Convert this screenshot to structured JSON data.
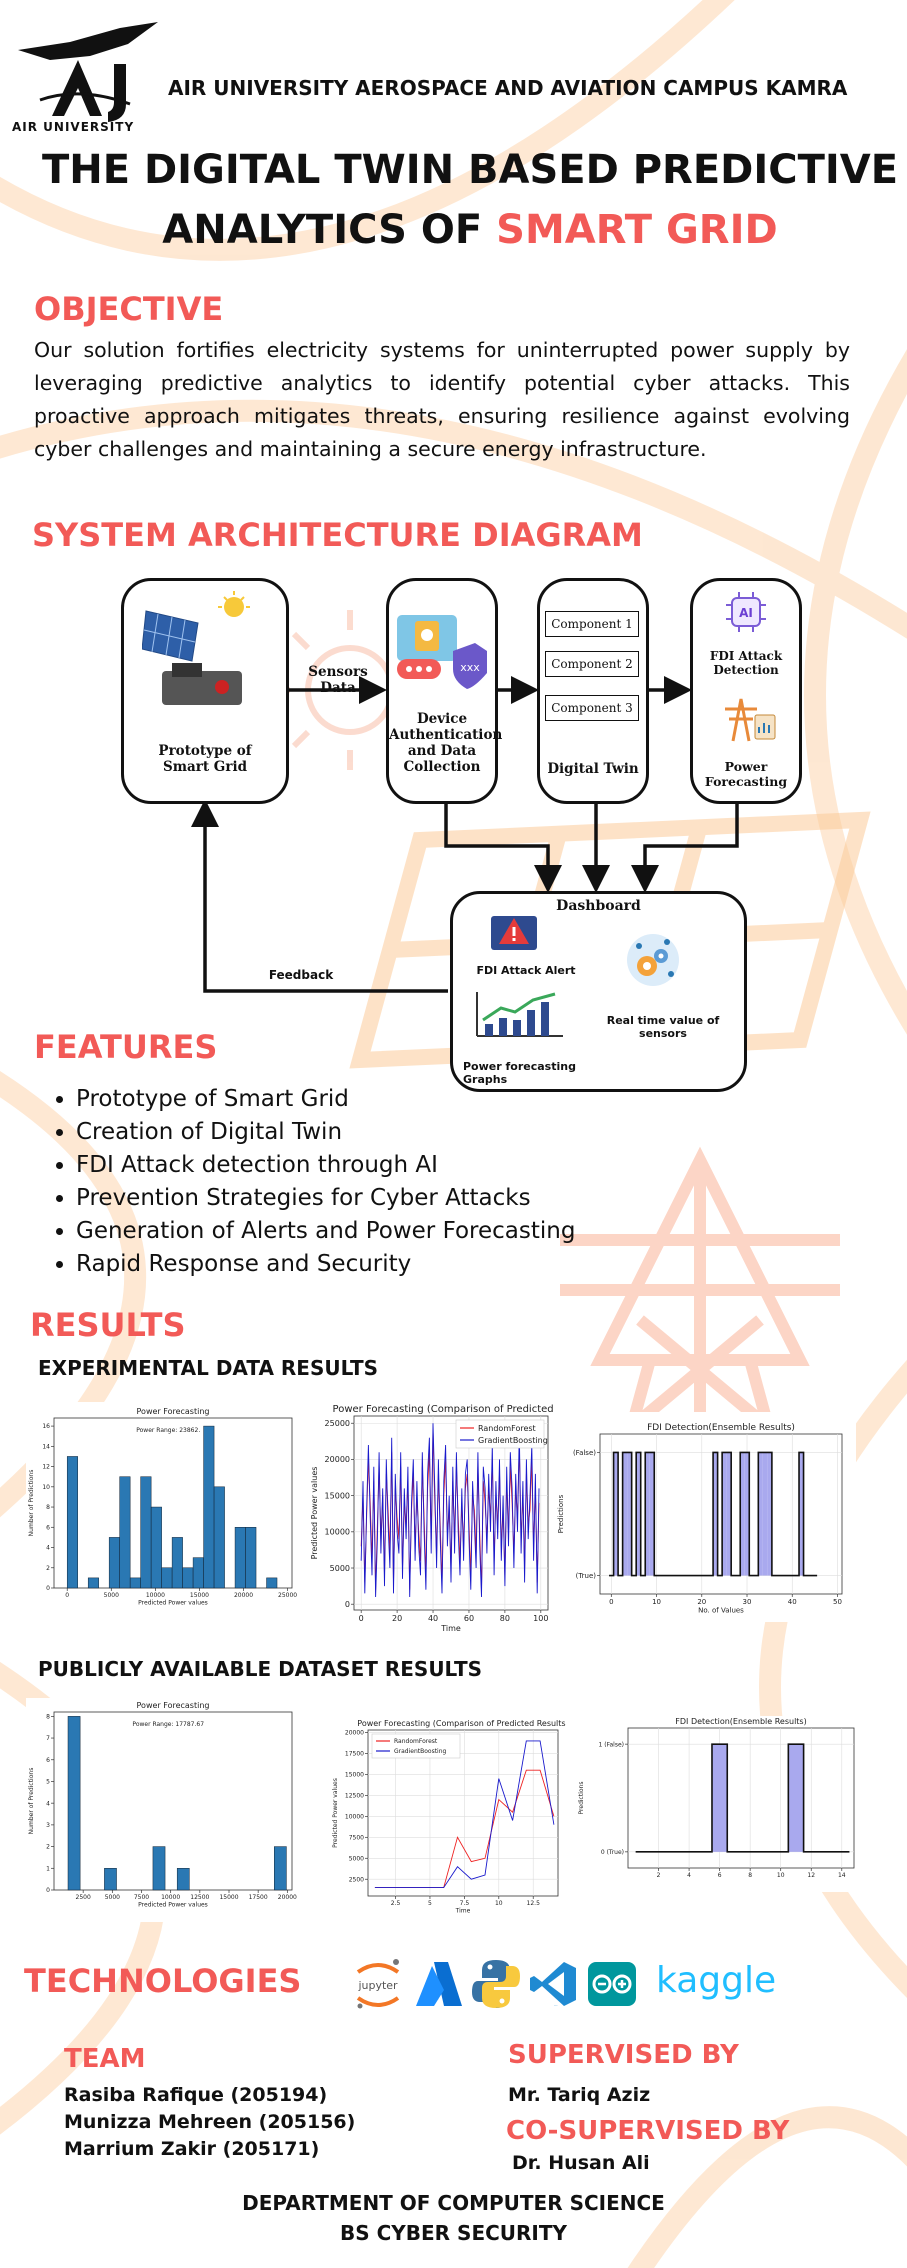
{
  "header": {
    "logo_text": "AIR UNIVERSITY",
    "institution": "AIR UNIVERSITY AEROSPACE AND AVIATION CAMPUS KAMRA"
  },
  "title": {
    "line1": "THE DIGITAL TWIN BASED PREDICTIVE",
    "line2_black": "ANALYTICS OF ",
    "line2_red": "SMART GRID"
  },
  "objective": {
    "heading": "OBJECTIVE",
    "text": "Our solution fortifies electricity systems for    uninterrupted power supply by leveraging predictive analytics to identify potential cyber attacks. This proactive approach mitigates threats, ensuring resilience against evolving cyber challenges and maintaining a secure energy infrastructure."
  },
  "architecture": {
    "heading": "SYSTEM ARCHITECTURE DIAGRAM",
    "prototype_label": "Prototype of Smart Grid",
    "sensors_label": "Sensors Data",
    "auth_label": "Device Authentication and Data Collection",
    "components": [
      "Component 1",
      "Component 2",
      "Component 3"
    ],
    "twin_label": "Digital Twin",
    "fdi_label": "FDI Attack Detection",
    "forecast_label": "Power Forecasting",
    "ai_badge": "AI",
    "dashboard_label": "Dashboard",
    "alert_label": "FDI Attack Alert",
    "realtime_label": "Real time value of sensors",
    "graphs_label": "Power forecasting Graphs",
    "feedback_label": "Feedback"
  },
  "features": {
    "heading": "FEATURES",
    "items": [
      "Prototype of Smart Grid",
      "Creation of Digital Twin",
      "FDI Attack detection through AI",
      "Prevention Strategies for Cyber Attacks",
      "Generation of Alerts and Power Forecasting",
      "Rapid Response and Security"
    ]
  },
  "results": {
    "heading": "RESULTS",
    "experimental_heading": "EXPERIMENTAL DATA RESULTS",
    "public_heading": "PUBLICLY AVAILABLE DATASET RESULTS"
  },
  "chart_data": [
    {
      "type": "bar",
      "title": "Power Forecasting",
      "annotation": "Power Range: 23862.",
      "xlabel": "Predicted Power values",
      "ylabel": "Number of Predictions",
      "xlim": [
        -1500,
        25500
      ],
      "ylim": [
        0,
        16.8
      ],
      "xticks": [
        0,
        5000,
        10000,
        15000,
        20000,
        25000
      ],
      "yticks": [
        0,
        2,
        4,
        6,
        8,
        10,
        12,
        14,
        16
      ],
      "bin_start": 0,
      "bin_width": 1190,
      "values": [
        13,
        0,
        1,
        0,
        5,
        11,
        1,
        11,
        8,
        2,
        5,
        2,
        3,
        16,
        10,
        0,
        6,
        6,
        0,
        1
      ],
      "color": "#2a78b3"
    },
    {
      "type": "line",
      "title": "Power Forecasting (Comparison of Predicted Re",
      "xlabel": "Time",
      "ylabel": "Predicted Power values",
      "xlim": [
        -4,
        104
      ],
      "ylim": [
        -800,
        26000
      ],
      "xticks": [
        0,
        20,
        40,
        60,
        80,
        100
      ],
      "yticks": [
        0,
        5000,
        10000,
        15000,
        20000,
        25000
      ],
      "series": [
        {
          "name": "RandomForest",
          "color": "#ee2222",
          "values": [
            8000,
            15000,
            3000,
            12000,
            20000,
            14000,
            6000,
            17000,
            2000,
            11000,
            19000,
            9000,
            15000,
            4000,
            18000,
            13000,
            7000,
            21000,
            3000,
            16000,
            12000,
            9000,
            19000,
            5000,
            14000,
            11000,
            17000,
            2000,
            13000,
            18000,
            8000,
            15000,
            10000,
            6000,
            19000,
            12000,
            4000,
            16000,
            21000,
            9000,
            24000,
            14000,
            7000,
            18000,
            11000,
            3000,
            15000,
            20000,
            10000,
            13000,
            5000,
            17000,
            9000,
            19000,
            12000,
            6000,
            14000,
            8000,
            16000,
            18000,
            11000,
            4000,
            15000,
            13000,
            7000,
            19000,
            10000,
            2000,
            17000,
            14000,
            9000,
            16000,
            12000,
            20000,
            6000,
            15000,
            11000,
            18000,
            8000,
            13000,
            4000,
            17000,
            10000,
            19000,
            14000,
            7000,
            16000,
            12000,
            22000,
            9000,
            15000,
            5000,
            18000,
            11000,
            13000,
            20000,
            8000,
            16000,
            3000,
            14000
          ]
        },
        {
          "name": "GradientBoosting",
          "color": "#1a1acc",
          "values": [
            6000,
            17000,
            1500,
            13000,
            22000,
            12000,
            4000,
            19000,
            1000,
            9000,
            21000,
            7000,
            16000,
            2500,
            20000,
            11000,
            5000,
            23000,
            1500,
            18000,
            10000,
            7000,
            21000,
            3500,
            16000,
            9000,
            19000,
            1000,
            14000,
            20000,
            6000,
            17000,
            8000,
            4000,
            21000,
            10000,
            2000,
            18000,
            23000,
            7000,
            25000,
            16000,
            5000,
            20000,
            9000,
            1500,
            17000,
            22000,
            8000,
            15000,
            3000,
            19000,
            7000,
            21000,
            10000,
            4000,
            16000,
            6000,
            18000,
            20000,
            9000,
            2000,
            17000,
            11000,
            5000,
            21000,
            8000,
            1000,
            19000,
            16000,
            7000,
            18000,
            10000,
            22000,
            4000,
            17000,
            9000,
            20000,
            6000,
            15000,
            2500,
            19000,
            8000,
            21000,
            16000,
            5000,
            18000,
            10000,
            24000,
            7000,
            17000,
            3000,
            20000,
            9000,
            15000,
            22000,
            6000,
            18000,
            1500,
            16000
          ]
        }
      ],
      "legend": "top-right"
    },
    {
      "type": "bar",
      "title": "FDI Detection(Ensemble Results)",
      "xlabel": "No. of Values",
      "ylabel": "Predictions",
      "xlim": [
        -2.5,
        51
      ],
      "ylim": [
        -0.15,
        1.15
      ],
      "xticks": [
        0,
        10,
        20,
        30,
        40,
        50
      ],
      "ytick_labels": [
        "(True)",
        "(False)"
      ],
      "values": [
        0,
        1,
        0,
        1,
        1,
        0,
        1,
        0,
        1,
        1,
        0,
        0,
        0,
        0,
        0,
        0,
        0,
        0,
        0,
        0,
        0,
        0,
        0,
        1,
        0,
        1,
        1,
        0,
        0,
        1,
        1,
        0,
        0,
        1,
        1,
        1,
        0,
        0,
        0,
        0,
        0,
        0,
        1,
        0,
        0,
        0
      ],
      "color": "#a9a9ee"
    },
    {
      "type": "bar",
      "title": "Power Forecasting",
      "annotation": "Power Range: 17787.67",
      "xlabel": "Predicted Power values",
      "ylabel": "Number of Predictions",
      "xlim": [
        0,
        20400
      ],
      "ylim": [
        0,
        8.2
      ],
      "xticks": [
        2500,
        5000,
        7500,
        10000,
        12500,
        15000,
        17500,
        20000
      ],
      "yticks": [
        0,
        1,
        2,
        3,
        4,
        5,
        6,
        7,
        8
      ],
      "bin_start": 1200,
      "bin_width": 1040,
      "values": [
        8,
        0,
        0,
        1,
        0,
        0,
        0,
        2,
        0,
        1,
        0,
        0,
        0,
        0,
        0,
        0,
        0,
        2
      ],
      "color": "#2a78b3"
    },
    {
      "type": "line",
      "title": "Power Forecasting (Comparison of Predicted Results)",
      "xlabel": "Time",
      "ylabel": "Predicted Power values",
      "xlim": [
        0.5,
        14.3
      ],
      "ylim": [
        500,
        20300
      ],
      "xticks": [
        2.5,
        5.0,
        7.5,
        10.0,
        12.5
      ],
      "yticks": [
        2500,
        5000,
        7500,
        10000,
        12500,
        15000,
        17500,
        20000
      ],
      "x": [
        1,
        2,
        3,
        4,
        5,
        6,
        7,
        8,
        9,
        10,
        11,
        12,
        13,
        14
      ],
      "series": [
        {
          "name": "RandomForest",
          "color": "#ee2222",
          "values": [
            1500,
            1500,
            1500,
            1500,
            1500,
            1500,
            7500,
            4600,
            5000,
            12000,
            10500,
            15500,
            15500,
            10000
          ]
        },
        {
          "name": "GradientBoosting",
          "color": "#1a1acc",
          "values": [
            1500,
            1500,
            1500,
            1500,
            1500,
            1500,
            4000,
            2500,
            3000,
            14500,
            9500,
            19000,
            19000,
            9000
          ]
        }
      ],
      "legend": "top-left"
    },
    {
      "type": "bar",
      "title": "FDI Detection(Ensemble Results)",
      "ylabel": "Predictions",
      "xlim": [
        0,
        14.8
      ],
      "ylim": [
        -0.15,
        1.15
      ],
      "xticks": [
        2,
        4,
        6,
        8,
        10,
        12,
        14
      ],
      "ytick_labels": [
        "0 (True)",
        "1 (False)"
      ],
      "values": [
        0,
        0,
        0,
        0,
        0,
        1,
        0,
        0,
        0,
        0,
        1,
        0,
        0,
        0
      ],
      "color": "#a9a9ee"
    }
  ],
  "technologies": {
    "heading": "TECHNOLOGIES",
    "logos": [
      "jupyter",
      "A",
      "python",
      "vscode",
      "arduino",
      "kaggle"
    ]
  },
  "team": {
    "heading": "TEAM",
    "members": [
      "Rasiba Rafique (205194)",
      "Munizza Mehreen (205156)",
      "Marrium Zakir (205171)"
    ]
  },
  "supervision": {
    "supervised_heading": "SUPERVISED BY",
    "supervisor": "Mr. Tariq Aziz",
    "co_heading": "CO-SUPERVISED BY",
    "co_supervisor": "Dr. Husan Ali"
  },
  "footer": {
    "department": "DEPARTMENT OF COMPUTER SCIENCE",
    "program": "BS CYBER SECURITY"
  }
}
